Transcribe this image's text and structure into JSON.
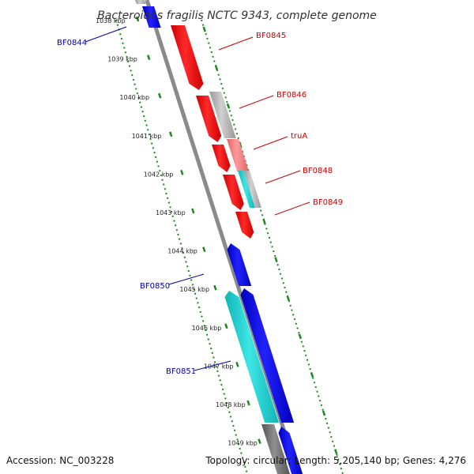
{
  "title": "Bacteroides fragilis NCTC 9343, complete genome",
  "footer": {
    "accession": "Accession: NC_003228",
    "summary": "Topology: circular; Length: 5,205,140 bp; Genes: 4,276"
  },
  "colors": {
    "backbone": "#8a8a8a",
    "ticks": "#1a8a1a",
    "forward_label": "#cc0000",
    "reverse_label": "#0000aa",
    "red": "#ee1111",
    "blue": "#0000ee",
    "cyan": "#1ccccc",
    "gray": "#aaaaaa",
    "pink": "#ee7777"
  },
  "ticks": [
    "1038 kbp",
    "1039 kbp",
    "1040 kbp",
    "1041 kbp",
    "1042 kbp",
    "1043 kbp",
    "1044 kbp",
    "1045 kbp",
    "1046 kbp",
    "1047 kbp",
    "1048 kbp",
    "1049 kbp"
  ],
  "genes": [
    {
      "name": "BF0844",
      "strand": "reverse"
    },
    {
      "name": "BF0845",
      "strand": "forward"
    },
    {
      "name": "BF0846",
      "strand": "forward"
    },
    {
      "name": "truA",
      "strand": "forward"
    },
    {
      "name": "BF0848",
      "strand": "forward"
    },
    {
      "name": "BF0849",
      "strand": "forward"
    },
    {
      "name": "BF0850",
      "strand": "reverse"
    },
    {
      "name": "BF0851",
      "strand": "reverse"
    }
  ]
}
